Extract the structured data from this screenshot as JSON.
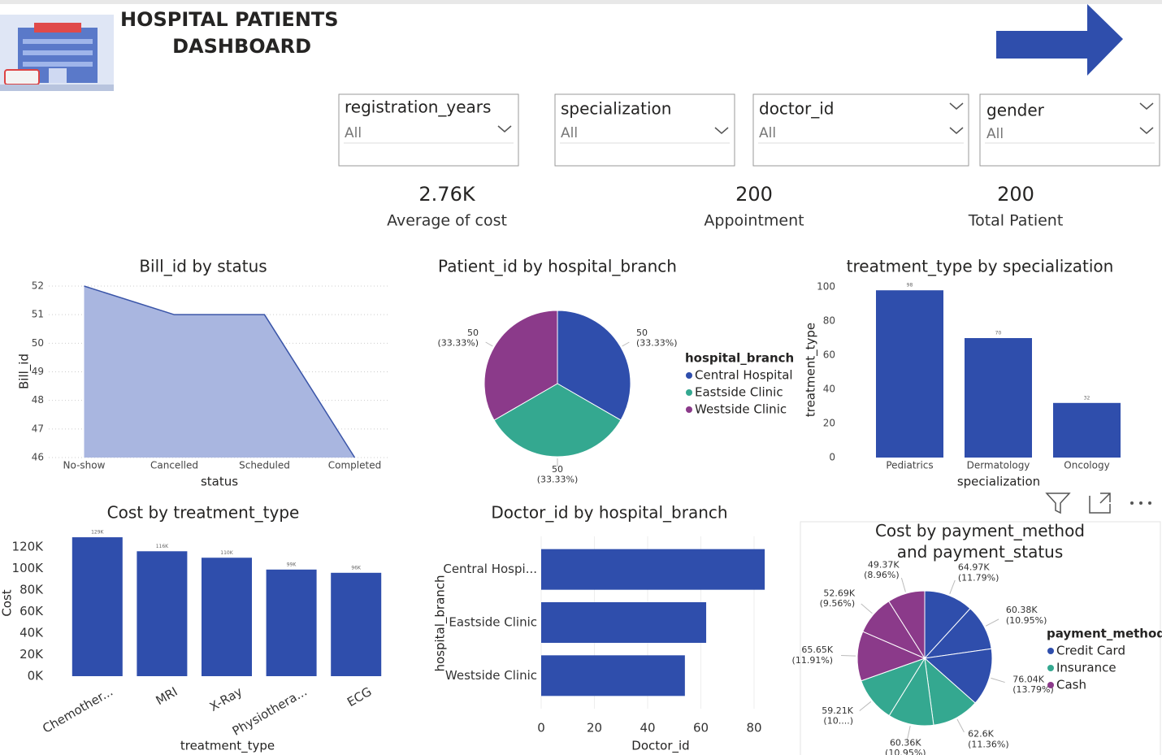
{
  "header": {
    "title_lines": [
      "HOSPITAL PATIENTS",
      "DASHBOARD"
    ]
  },
  "filters": [
    {
      "label": "registration_years",
      "value": "All"
    },
    {
      "label": "specialization",
      "value": "All"
    },
    {
      "label": "doctor_id",
      "value": "All"
    },
    {
      "label": "gender",
      "value": "All"
    }
  ],
  "kpis": [
    {
      "value": "2.76K",
      "label": "Average of cost"
    },
    {
      "value": "200",
      "label": "Appointment"
    },
    {
      "value": "200",
      "label": "Total Patient"
    }
  ],
  "chart_data": [
    {
      "type": "area",
      "title": "Bill_id by status",
      "x_label": "status",
      "y_label": "Bill_id",
      "categories": [
        "No-show",
        "Cancelled",
        "Scheduled",
        "Completed"
      ],
      "values": [
        52,
        51,
        51,
        46
      ],
      "ylim": [
        46,
        52
      ],
      "yticks": [
        46,
        47,
        48,
        49,
        50,
        51,
        52
      ],
      "grid": true,
      "color": "#a9b6e0",
      "line_color": "#3a55a8"
    },
    {
      "type": "pie",
      "title": "Patient_id by hospital_branch",
      "legend_title": "hospital_branch",
      "legend": "right",
      "categories": [
        "Central Hospital",
        "Eastside Clinic",
        "Westside Clinic"
      ],
      "values": [
        50,
        50,
        50
      ],
      "value_labels": [
        "50 (33.33%)",
        "50 (33.33%)",
        "50 (33.33%)"
      ],
      "colors": [
        "#2f4eac",
        "#34a890",
        "#8b3a8a"
      ]
    },
    {
      "type": "bar",
      "title": "treatment_type by specialization",
      "x_label": "specialization",
      "y_label": "treatment_type",
      "categories": [
        "Pediatrics",
        "Dermatology",
        "Oncology"
      ],
      "values": [
        98,
        70,
        32
      ],
      "ylim": [
        0,
        100
      ],
      "yticks": [
        0,
        20,
        40,
        60,
        80,
        100
      ],
      "grid": false,
      "color": "#2f4eac"
    },
    {
      "type": "bar",
      "title": "Cost by treatment_type",
      "x_label": "treatment_type",
      "y_label": "Cost",
      "categories": [
        "Chemother...",
        "MRI",
        "X-Ray",
        "Physiothera...",
        "ECG"
      ],
      "values": [
        129000,
        116000,
        110000,
        99000,
        96000
      ],
      "value_labels": [
        "129K",
        "116K",
        "110K",
        "99K",
        "96K"
      ],
      "ylim": [
        0,
        130000
      ],
      "yticks": [
        {
          "value": 0,
          "label": "0K"
        },
        {
          "value": 20000,
          "label": "20K"
        },
        {
          "value": 40000,
          "label": "40K"
        },
        {
          "value": 60000,
          "label": "60K"
        },
        {
          "value": 80000,
          "label": "80K"
        },
        {
          "value": 100000,
          "label": "100K"
        },
        {
          "value": 120000,
          "label": "120K"
        }
      ],
      "grid": false,
      "color": "#2f4eac"
    },
    {
      "type": "bar",
      "orientation": "horizontal",
      "title": "Doctor_id by hospital_branch",
      "x_label": "Doctor_id",
      "y_label": "hospital_branch",
      "categories": [
        "Central Hospi...",
        "Eastside Clinic",
        "Westside Clinic"
      ],
      "values": [
        84,
        62,
        54
      ],
      "xlim": [
        0,
        85
      ],
      "xticks": [
        0,
        20,
        40,
        60,
        80
      ],
      "grid": true,
      "color": "#2f4eac"
    },
    {
      "type": "pie",
      "title": "Cost by payment_method and payment_status",
      "legend_title": "payment_method",
      "legend": "right",
      "series": [
        {
          "name": "Credit Card",
          "color": "#2f4eac",
          "values": [
            64970,
            60380,
            76040
          ],
          "value_labels": [
            "64.97K (11.79%)",
            "60.38K (10.95%)",
            "76.04K (13.79%)"
          ]
        },
        {
          "name": "Insurance",
          "color": "#34a890",
          "values": [
            62600,
            60360,
            59210
          ],
          "value_labels": [
            "62.6K (11.36%)",
            "60.36K (10.95%)",
            "59.21K (10....)"
          ]
        },
        {
          "name": "Cash",
          "color": "#8b3a8a",
          "values": [
            65650,
            52690,
            49370
          ],
          "value_labels": [
            "65.65K (11.91%)",
            "52.69K (9.56%)",
            "49.37K (8.96%)"
          ]
        }
      ]
    }
  ]
}
